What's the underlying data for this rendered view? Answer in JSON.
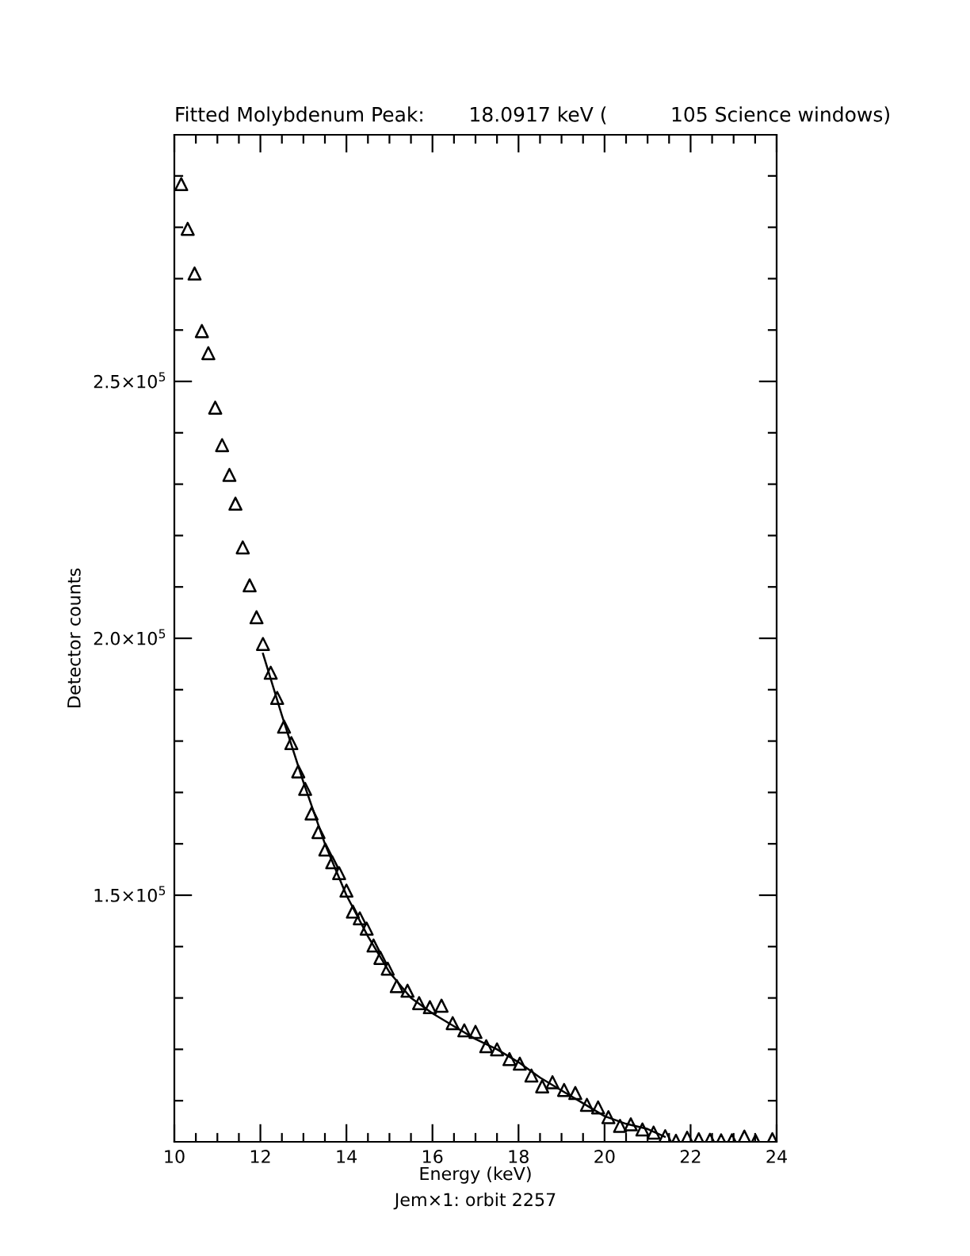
{
  "chart_data": {
    "type": "scatter",
    "title": "Fitted Molybdenum Peak:       18.0917 keV (          105 Science windows)",
    "xlabel": "Energy (keV)",
    "ylabel": "Detector counts",
    "annotations": [
      "Jem×1: orbit 2257"
    ],
    "xlim": [
      10,
      24
    ],
    "ylim": [
      102000,
      298000
    ],
    "xticks": [
      10,
      {
        "value": 10.5,
        "label": null
      },
      {
        "value": 11,
        "label": null
      },
      {
        "value": 11.5,
        "label": null
      },
      12,
      {
        "value": 12.5,
        "label": null
      },
      {
        "value": 13,
        "label": null
      },
      {
        "value": 13.5,
        "label": null
      },
      14,
      {
        "value": 14.5,
        "label": null
      },
      {
        "value": 15,
        "label": null
      },
      {
        "value": 15.5,
        "label": null
      },
      16,
      {
        "value": 16.5,
        "label": null
      },
      {
        "value": 17,
        "label": null
      },
      {
        "value": 17.5,
        "label": null
      },
      18,
      {
        "value": 18.5,
        "label": null
      },
      {
        "value": 19,
        "label": null
      },
      {
        "value": 19.5,
        "label": null
      },
      20,
      {
        "value": 20.5,
        "label": null
      },
      {
        "value": 21,
        "label": null
      },
      {
        "value": 21.5,
        "label": null
      },
      22,
      {
        "value": 22.5,
        "label": null
      },
      {
        "value": 23,
        "label": null
      },
      {
        "value": 23.5,
        "label": null
      },
      24
    ],
    "yticks": [
      {
        "value": 110000,
        "label": null
      },
      {
        "value": 120000,
        "label": null
      },
      {
        "value": 130000,
        "label": null
      },
      {
        "value": 140000,
        "label": null
      },
      {
        "value": 150000,
        "label": "1.5×10$^{5}$"
      },
      {
        "value": 160000,
        "label": null
      },
      {
        "value": 170000,
        "label": null
      },
      {
        "value": 180000,
        "label": null
      },
      {
        "value": 190000,
        "label": null
      },
      {
        "value": 200000,
        "label": "2.0×10$^{5}$"
      },
      {
        "value": 210000,
        "label": null
      },
      {
        "value": 220000,
        "label": null
      },
      {
        "value": 230000,
        "label": null
      },
      {
        "value": 240000,
        "label": null
      },
      {
        "value": 250000,
        "label": "2.5×10$^{5}$"
      },
      {
        "value": 260000,
        "label": null
      },
      {
        "value": 270000,
        "label": null
      },
      {
        "value": 280000,
        "label": null
      },
      {
        "value": 290000,
        "label": null
      }
    ],
    "grid": false,
    "legend": false,
    "series": [
      {
        "marker": "triangle",
        "color": "#000000",
        "x": [
          10.16,
          10.31,
          10.47,
          10.64,
          10.79,
          10.95,
          11.11,
          11.28,
          11.42,
          11.59,
          11.75,
          11.91,
          12.06,
          12.24,
          12.39,
          12.55,
          12.72,
          12.88,
          13.04,
          13.19,
          13.35,
          13.51,
          13.67,
          13.83,
          14.0,
          14.15,
          14.31,
          14.47,
          14.63,
          14.79,
          14.96,
          15.17,
          15.42,
          15.69,
          15.94,
          16.21,
          16.47,
          16.74,
          17.0,
          17.25,
          17.5,
          17.79,
          18.03,
          18.3,
          18.55,
          18.79,
          19.06,
          19.32,
          19.59,
          19.85,
          20.09,
          20.36,
          20.61,
          20.88,
          21.14,
          21.41,
          21.66,
          21.92,
          22.19,
          22.45,
          22.71,
          22.96,
          23.25,
          23.51,
          23.9
        ],
        "values": [
          288400,
          279700,
          271000,
          259800,
          255500,
          244900,
          237600,
          231800,
          226200,
          217700,
          210300,
          204100,
          198900,
          193300,
          188400,
          182800,
          179600,
          174100,
          170700,
          165900,
          162300,
          158900,
          156400,
          154300,
          150900,
          146800,
          145500,
          143500,
          140200,
          137800,
          135700,
          132300,
          131400,
          129000,
          128200,
          128500,
          125100,
          123700,
          123400,
          120600,
          120000,
          118100,
          117200,
          114900,
          112800,
          113600,
          112100,
          111500,
          109200,
          108700,
          106800,
          105100,
          105400,
          104400,
          103800,
          103100,
          102200,
          102800,
          102500,
          102400,
          102300,
          102300,
          103000,
          102200,
          102500
        ]
      },
      {
        "type": "line",
        "marker": "none",
        "line_style": "solid",
        "color": "#000000",
        "x": [
          12.06,
          12.5,
          13.0,
          13.5,
          14.0,
          14.5,
          15.0,
          15.5,
          16.0,
          16.5,
          17.0,
          17.5,
          18.0,
          18.5,
          19.0,
          19.5,
          20.0,
          20.5,
          21.0,
          21.4
        ],
        "values": [
          197000,
          185000,
          172000,
          160000,
          150000,
          142000,
          135000,
          130000,
          127000,
          124500,
          122000,
          120000,
          117500,
          114500,
          112000,
          109500,
          107000,
          105500,
          104500,
          103000
        ]
      }
    ]
  }
}
